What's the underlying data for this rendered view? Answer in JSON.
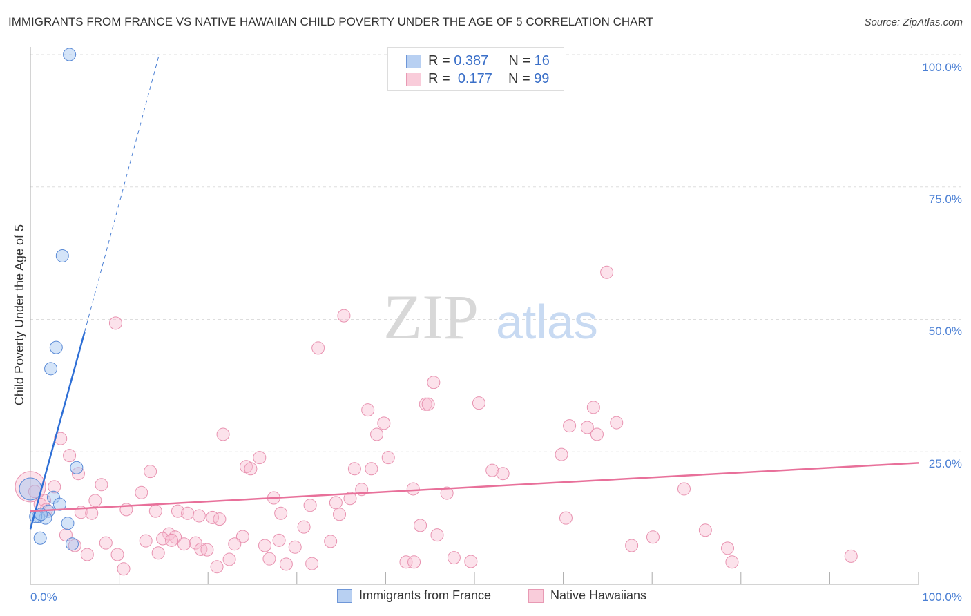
{
  "title": "IMMIGRANTS FROM FRANCE VS NATIVE HAWAIIAN CHILD POVERTY UNDER THE AGE OF 5 CORRELATION CHART",
  "source": "Source: ZipAtlas.com",
  "watermark": "ZIPatlas",
  "legend": {
    "r_label": "R =",
    "n_label": "N =",
    "blue_r": "0.387",
    "blue_n": "16",
    "pink_r": "0.177",
    "pink_n": "99"
  },
  "colors": {
    "blue": "#4a7fd4",
    "pink": "#e8709a"
  },
  "chart_data": {
    "type": "scatter",
    "title": "IMMIGRANTS FROM FRANCE VS NATIVE HAWAIIAN CHILD POVERTY UNDER THE AGE OF 5 CORRELATION CHART",
    "xlabel": "",
    "ylabel": "Child Poverty Under the Age of 5",
    "xlim": [
      0,
      100
    ],
    "ylim": [
      0,
      100
    ],
    "x_ticks": [
      "0.0%",
      "100.0%"
    ],
    "y_ticks": [
      "25.0%",
      "50.0%",
      "75.0%",
      "100.0%"
    ],
    "legend_position": "bottom",
    "series": [
      {
        "name": "Immigrants from France",
        "color": "#4a7fd4",
        "trend": {
          "x0": 0,
          "y0": 10.4,
          "x1": 6.1,
          "y1": 47.6,
          "dash_to": [
            14.5,
            100
          ]
        },
        "points": [
          [
            4.4,
            100
          ],
          [
            3.6,
            62
          ],
          [
            2.9,
            44.7
          ],
          [
            2.3,
            40.7
          ],
          [
            5.2,
            22
          ],
          [
            2.6,
            16.4
          ],
          [
            3.3,
            15.1
          ],
          [
            2.0,
            13.8
          ],
          [
            0.9,
            12.8
          ],
          [
            1.7,
            12.5
          ],
          [
            0.6,
            12.8
          ],
          [
            4.2,
            11.5
          ],
          [
            1.1,
            8.7
          ],
          [
            4.7,
            7.6
          ],
          [
            0,
            18
          ],
          [
            1.2,
            13.2
          ]
        ]
      },
      {
        "name": "Native Hawaiians",
        "color": "#e8709a",
        "trend": {
          "x0": 0,
          "y0": 13.8,
          "x1": 100,
          "y1": 22.9
        },
        "points": [
          [
            9.6,
            49.3
          ],
          [
            35.3,
            50.7
          ],
          [
            64.9,
            58.9
          ],
          [
            32.4,
            44.6
          ],
          [
            45.4,
            38.1
          ],
          [
            38,
            32.9
          ],
          [
            44.5,
            34
          ],
          [
            44.8,
            34
          ],
          [
            50.5,
            34.2
          ],
          [
            39.8,
            30.4
          ],
          [
            39,
            28.3
          ],
          [
            63.4,
            33.4
          ],
          [
            66,
            30.5
          ],
          [
            60.7,
            29.9
          ],
          [
            62.7,
            29.6
          ],
          [
            63.8,
            28.3
          ],
          [
            21.7,
            28.3
          ],
          [
            3.4,
            27.5
          ],
          [
            59.8,
            24.5
          ],
          [
            40.3,
            23.9
          ],
          [
            25.8,
            23.9
          ],
          [
            4.4,
            24.3
          ],
          [
            24.3,
            22.2
          ],
          [
            24.8,
            21.8
          ],
          [
            36.5,
            21.8
          ],
          [
            38.4,
            21.8
          ],
          [
            52,
            21.5
          ],
          [
            53.2,
            20.9
          ],
          [
            13.5,
            21.3
          ],
          [
            5.4,
            20.9
          ],
          [
            8,
            18.8
          ],
          [
            2.7,
            18.4
          ],
          [
            37.3,
            17.9
          ],
          [
            43.1,
            18
          ],
          [
            73.6,
            18
          ],
          [
            12.5,
            17.3
          ],
          [
            46.9,
            17.2
          ],
          [
            27.4,
            16.3
          ],
          [
            36,
            16.2
          ],
          [
            7.3,
            15.8
          ],
          [
            34.4,
            15.4
          ],
          [
            31.5,
            14.9
          ],
          [
            1.6,
            15.8
          ],
          [
            10.8,
            14.1
          ],
          [
            14.1,
            13.8
          ],
          [
            16.6,
            13.8
          ],
          [
            17.7,
            13.4
          ],
          [
            5.7,
            13.6
          ],
          [
            6.9,
            13.4
          ],
          [
            19,
            12.9
          ],
          [
            20.5,
            12.6
          ],
          [
            21.3,
            12.3
          ],
          [
            28.2,
            13.4
          ],
          [
            34.8,
            13.2
          ],
          [
            60.3,
            12.5
          ],
          [
            30.8,
            10.8
          ],
          [
            43.9,
            11.1
          ],
          [
            76,
            10.2
          ],
          [
            4,
            9.3
          ],
          [
            23.9,
            9
          ],
          [
            45.8,
            9.3
          ],
          [
            70.1,
            8.9
          ],
          [
            15.6,
            9.5
          ],
          [
            14.9,
            8.6
          ],
          [
            16.3,
            8.9
          ],
          [
            8.5,
            7.8
          ],
          [
            13,
            8.2
          ],
          [
            18.6,
            7.8
          ],
          [
            15.9,
            8.3
          ],
          [
            28,
            8.3
          ],
          [
            33.8,
            8.1
          ],
          [
            23,
            7.6
          ],
          [
            26.4,
            7.3
          ],
          [
            29.8,
            7
          ],
          [
            67.7,
            7.3
          ],
          [
            78.5,
            6.8
          ],
          [
            17.3,
            7.6
          ],
          [
            19.2,
            6.6
          ],
          [
            19.9,
            6.5
          ],
          [
            5,
            7.3
          ],
          [
            14.4,
            5.9
          ],
          [
            6.4,
            5.6
          ],
          [
            9.8,
            5.6
          ],
          [
            26.9,
            4.8
          ],
          [
            47.7,
            5
          ],
          [
            92.4,
            5.3
          ],
          [
            22.4,
            4.7
          ],
          [
            42.3,
            4.2
          ],
          [
            43.2,
            4.2
          ],
          [
            49.6,
            4.3
          ],
          [
            79,
            4.2
          ],
          [
            28.8,
            3.8
          ],
          [
            31.7,
            3.9
          ],
          [
            21,
            3.3
          ],
          [
            10.5,
            2.9
          ],
          [
            0,
            18.4
          ],
          [
            1.1,
            15.1
          ],
          [
            1.8,
            14.1
          ],
          [
            0.5,
            17.5
          ]
        ]
      }
    ]
  }
}
